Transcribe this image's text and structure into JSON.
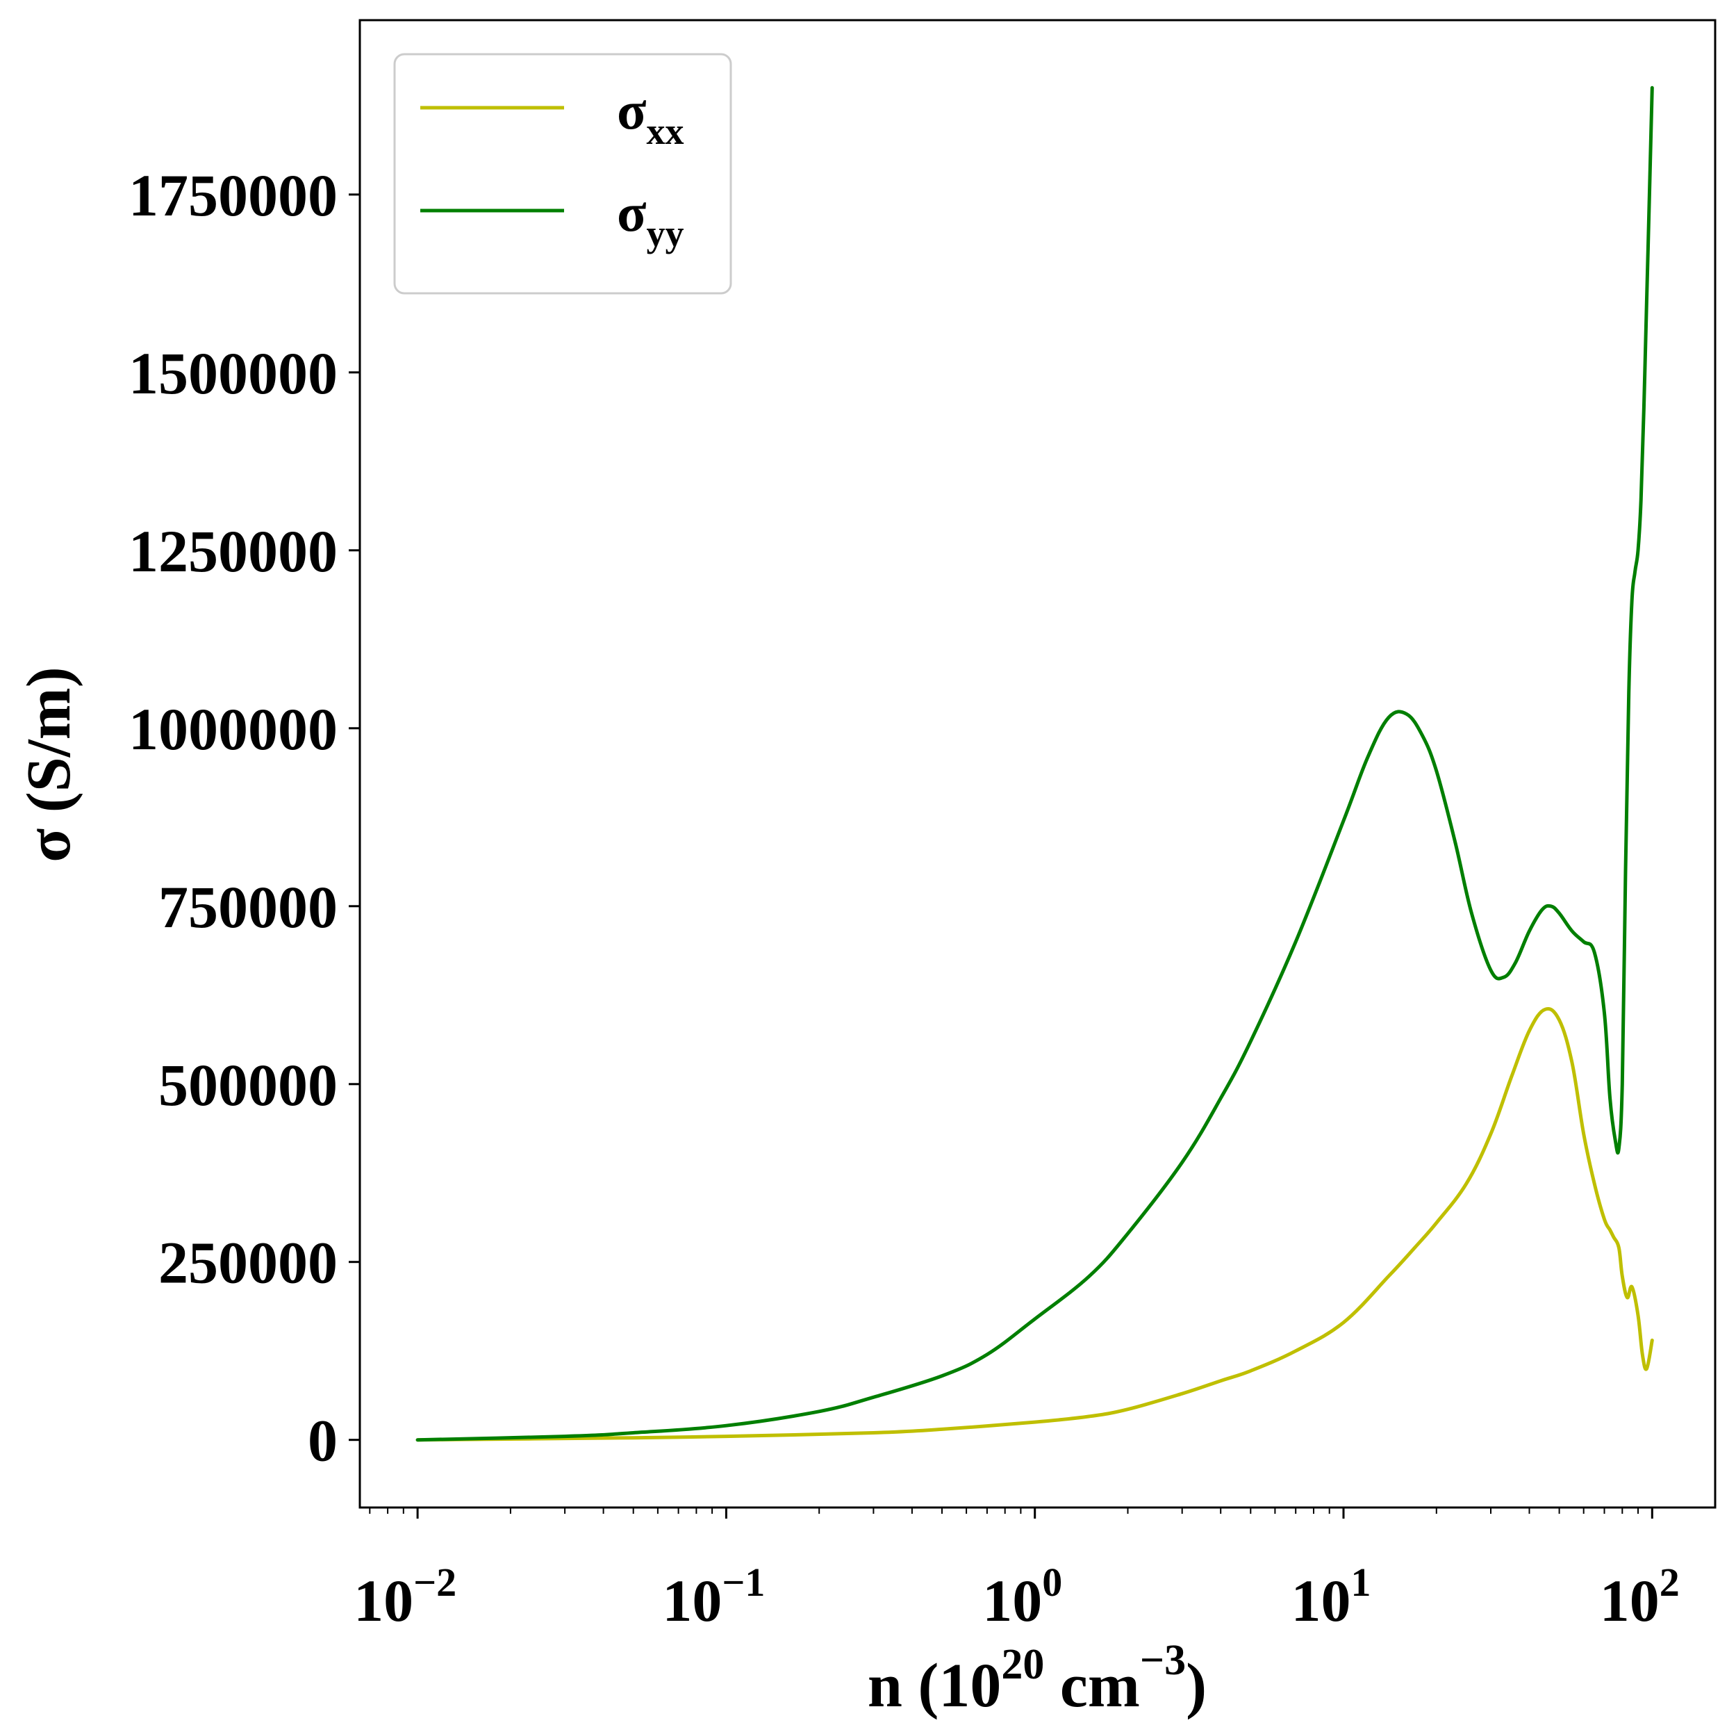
{
  "chart_data": {
    "type": "line",
    "xscale": "log",
    "xlim": [
      0.0065,
      160
    ],
    "ylim": [
      -95000,
      1995000
    ],
    "xticks": [
      {
        "base": "10",
        "exp": "−2",
        "value": 0.01
      },
      {
        "base": "10",
        "exp": "−1",
        "value": 0.1
      },
      {
        "base": "10",
        "exp": "0",
        "value": 1
      },
      {
        "base": "10",
        "exp": "1",
        "value": 10
      },
      {
        "base": "10",
        "exp": "2",
        "value": 100
      }
    ],
    "yticks": [
      {
        "label": "0",
        "value": 0
      },
      {
        "label": "250000",
        "value": 250000
      },
      {
        "label": "500000",
        "value": 500000
      },
      {
        "label": "750000",
        "value": 750000
      },
      {
        "label": "1000000",
        "value": 1000000
      },
      {
        "label": "1250000",
        "value": 1250000
      },
      {
        "label": "1500000",
        "value": 1500000
      },
      {
        "label": "1750000",
        "value": 1750000
      }
    ],
    "xlabel": {
      "prefix": "n (10",
      "exp1": "20",
      "mid": " cm",
      "exp2": "−3",
      "suffix": ")"
    },
    "ylabel": "σ (S/m)",
    "legend": "top-left",
    "grid": false,
    "series": [
      {
        "name": "σxx",
        "symbol": "σ",
        "subscript": "xx",
        "color": "#bfbf00",
        "x": [
          0.01,
          0.05,
          0.1,
          0.3,
          0.5,
          1,
          1.5,
          2,
          3,
          4,
          5,
          7,
          10,
          14,
          17,
          20,
          25,
          30,
          35,
          40,
          45,
          50,
          55,
          60,
          65,
          70,
          73,
          75,
          78,
          80,
          83,
          86,
          90,
          93,
          96,
          100
        ],
        "y": [
          0,
          3000,
          5000,
          10000,
          15000,
          25000,
          33000,
          43000,
          65000,
          83000,
          97000,
          125000,
          165000,
          230000,
          270000,
          305000,
          360000,
          430000,
          510000,
          575000,
          605000,
          590000,
          530000,
          430000,
          360000,
          310000,
          295000,
          285000,
          270000,
          230000,
          200000,
          215000,
          175000,
          120000,
          100000,
          140000
        ]
      },
      {
        "name": "σyy",
        "symbol": "σ",
        "subscript": "yy",
        "color": "#007f00",
        "x": [
          0.01,
          0.03,
          0.05,
          0.1,
          0.2,
          0.3,
          0.5,
          0.7,
          1,
          1.5,
          2,
          3,
          4,
          5,
          7,
          10,
          12,
          14,
          16,
          18,
          20,
          23,
          26,
          30,
          33,
          36,
          40,
          44,
          47,
          50,
          55,
          60,
          65,
          70,
          73,
          76,
          78,
          80,
          82,
          84,
          86,
          88,
          90,
          92,
          94,
          96,
          98,
          100
        ],
        "y": [
          0,
          5000,
          10000,
          20000,
          40000,
          60000,
          90000,
          120000,
          170000,
          230000,
          290000,
          390000,
          480000,
          560000,
          700000,
          870000,
          960000,
          1015000,
          1020000,
          990000,
          940000,
          840000,
          740000,
          660000,
          650000,
          670000,
          715000,
          745000,
          750000,
          740000,
          715000,
          700000,
          685000,
          600000,
          480000,
          420000,
          410000,
          500000,
          800000,
          1050000,
          1180000,
          1220000,
          1250000,
          1320000,
          1450000,
          1600000,
          1750000,
          1900000
        ]
      }
    ]
  }
}
